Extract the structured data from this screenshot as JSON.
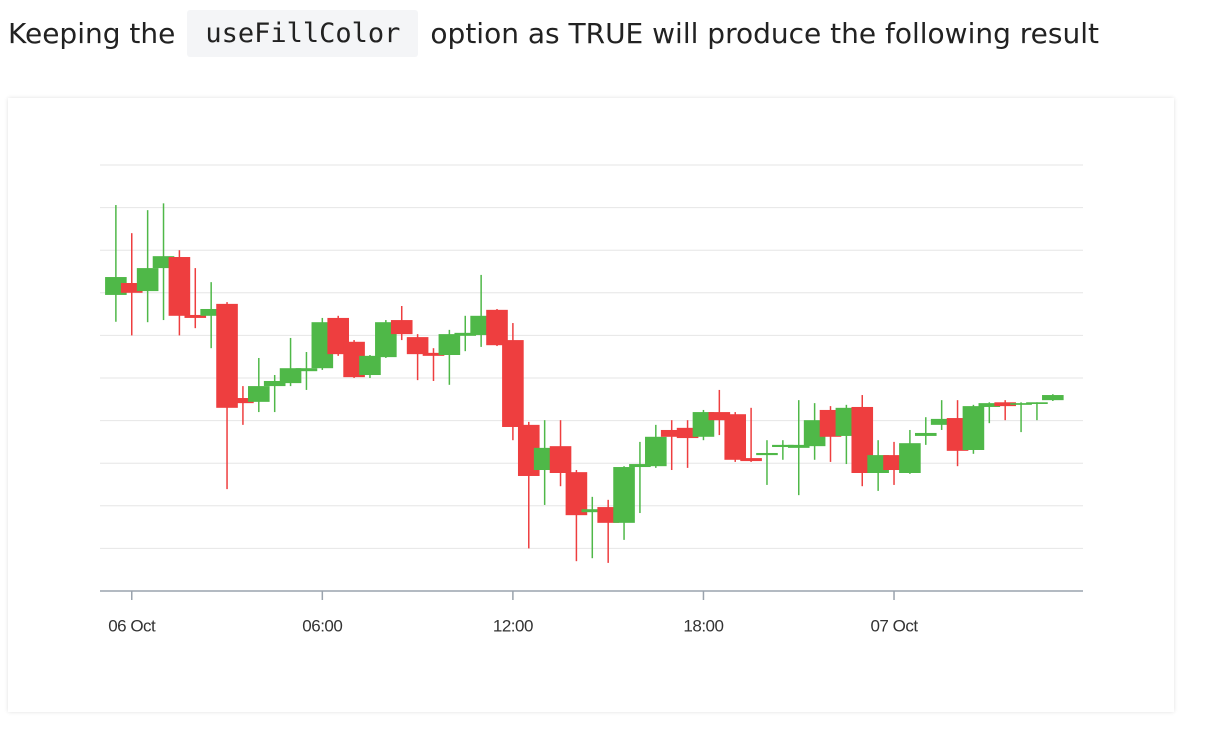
{
  "text": {
    "before": "Keeping the",
    "code": "useFillColor",
    "after": "option as TRUE will produce the following result"
  },
  "chart_data": {
    "type": "candlestick",
    "x": [
      -0.5,
      0,
      0.5,
      1,
      1.5,
      2,
      2.5,
      3,
      3.5,
      4,
      4.5,
      5,
      5.5,
      6,
      6.5,
      7,
      7.5,
      8,
      8.5,
      9,
      9.5,
      10,
      10.5,
      11,
      11.5,
      12,
      12.5,
      13,
      13.5,
      14,
      14.5,
      15,
      15.5,
      16,
      16.5,
      17,
      17.5,
      18,
      18.5,
      19,
      19.5,
      20,
      20.5,
      21,
      21.5,
      22,
      22.5,
      23,
      23.5,
      24,
      24.5,
      25,
      25.5,
      26,
      26.5,
      27,
      27.5,
      28,
      28.5,
      29
    ],
    "open": [
      6.95,
      7.23,
      7.04,
      7.58,
      7.84,
      6.48,
      6.46,
      6.74,
      4.53,
      4.44,
      4.81,
      4.88,
      5.16,
      5.23,
      6.41,
      5.85,
      5.07,
      5.49,
      6.36,
      5.96,
      5.59,
      5.54,
      5.99,
      6.01,
      6.6,
      5.89,
      3.9,
      2.84,
      3.4,
      2.79,
      1.85,
      1.97,
      1.6,
      2.91,
      2.93,
      3.78,
      3.83,
      3.62,
      4.2,
      4.15,
      3.12,
      3.19,
      3.38,
      3.36,
      3.4,
      4.25,
      3.64,
      4.32,
      2.77,
      3.19,
      2.77,
      3.64,
      3.9,
      4.06,
      3.31,
      4.32,
      4.43,
      4.37,
      4.39,
      4.48
    ],
    "high": [
      9.06,
      8.4,
      8.94,
      9.1,
      8.0,
      7.58,
      7.25,
      6.78,
      4.81,
      5.47,
      5.07,
      5.94,
      5.61,
      6.41,
      6.46,
      5.89,
      5.54,
      6.36,
      6.69,
      6.03,
      5.7,
      6.13,
      6.46,
      7.42,
      6.62,
      6.29,
      3.97,
      4.01,
      4.01,
      2.84,
      2.21,
      2.14,
      2.93,
      3.5,
      3.9,
      4.01,
      4.01,
      4.25,
      4.72,
      4.2,
      4.3,
      3.54,
      3.54,
      4.48,
      4.41,
      4.34,
      4.37,
      4.6,
      3.54,
      3.5,
      3.78,
      4.08,
      4.48,
      4.48,
      4.37,
      4.43,
      4.48,
      4.43,
      4.43,
      4.62
    ],
    "low": [
      6.32,
      6.0,
      6.31,
      6.36,
      6.0,
      6.17,
      5.7,
      2.39,
      3.9,
      4.2,
      4.2,
      4.81,
      4.72,
      5.19,
      5.52,
      5.0,
      5.0,
      5.47,
      5.89,
      4.95,
      4.93,
      4.84,
      5.63,
      5.73,
      5.75,
      3.54,
      1.0,
      2.02,
      2.46,
      0.7,
      0.77,
      0.66,
      1.2,
      1.83,
      2.89,
      2.84,
      2.89,
      3.54,
      3.66,
      3.03,
      3.03,
      2.49,
      3.08,
      2.25,
      3.08,
      3.03,
      2.98,
      2.46,
      2.35,
      2.49,
      2.75,
      3.43,
      3.78,
      2.93,
      3.22,
      3.94,
      4.01,
      3.73,
      4.01,
      4.46
    ],
    "close": [
      7.37,
      7.0,
      7.58,
      7.86,
      6.46,
      6.41,
      6.62,
      4.3,
      4.41,
      4.81,
      4.93,
      5.23,
      5.23,
      6.31,
      5.56,
      5.02,
      5.52,
      6.31,
      6.03,
      5.56,
      5.52,
      6.03,
      6.06,
      6.46,
      5.77,
      3.85,
      2.7,
      3.36,
      2.77,
      1.78,
      1.92,
      1.6,
      2.91,
      2.98,
      3.62,
      3.62,
      3.59,
      4.2,
      4.01,
      3.08,
      3.05,
      3.24,
      3.43,
      3.43,
      4.01,
      3.62,
      4.3,
      2.77,
      3.19,
      2.84,
      3.47,
      3.71,
      4.04,
      3.29,
      4.34,
      4.41,
      4.34,
      4.41,
      4.43,
      4.6
    ],
    "up_color": "#4fb848",
    "down_color": "#ee3e3f",
    "xlim": [
      -1,
      29.95
    ],
    "xticks": [
      {
        "value": 0,
        "label": "06 Oct"
      },
      {
        "value": 6,
        "label": "06:00"
      },
      {
        "value": 12,
        "label": "12:00"
      },
      {
        "value": 18,
        "label": "18:00"
      },
      {
        "value": 24,
        "label": "07 Oct"
      }
    ],
    "ylim": [
      0,
      10
    ],
    "yticks": [
      0,
      1,
      2,
      3,
      4,
      5,
      6,
      7,
      8,
      9,
      10
    ],
    "grid": true
  }
}
